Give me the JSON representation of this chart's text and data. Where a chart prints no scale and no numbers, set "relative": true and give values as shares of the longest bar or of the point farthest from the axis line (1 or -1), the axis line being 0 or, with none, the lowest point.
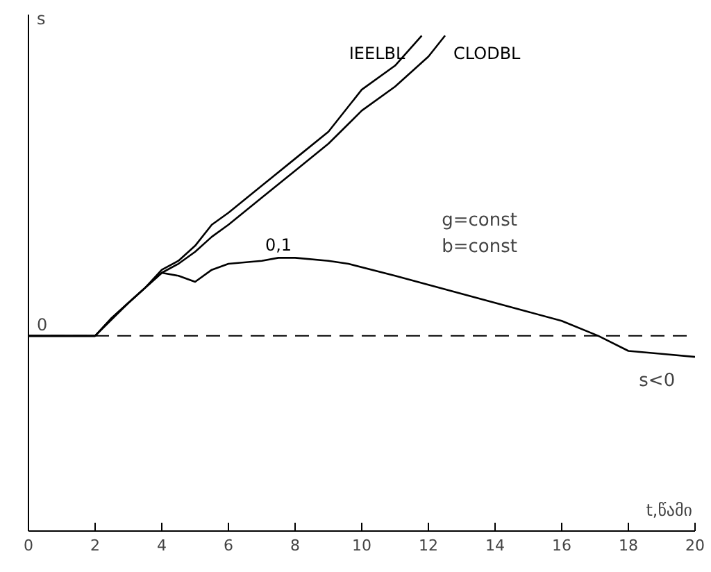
{
  "chart_data": {
    "type": "line",
    "relative": true,
    "ylabel": "s",
    "xlabel": "t,წამი",
    "xlim": [
      0,
      20
    ],
    "xticks": [
      0,
      2,
      4,
      6,
      8,
      10,
      12,
      14,
      16,
      18,
      20
    ],
    "grid": false,
    "marker": "none",
    "line_style": "solid",
    "series": [
      {
        "name": "IEELBL",
        "color": "#000000",
        "x": [
          0,
          2,
          2.5,
          3,
          3.5,
          4,
          4.5,
          5,
          5.5,
          6,
          7,
          8,
          9,
          10,
          11,
          11.8
        ],
        "values": [
          0,
          0,
          0.06,
          0.11,
          0.16,
          0.22,
          0.25,
          0.3,
          0.37,
          0.41,
          0.5,
          0.59,
          0.68,
          0.82,
          0.9,
          1.0
        ]
      },
      {
        "name": "CLODBL",
        "color": "#000000",
        "x": [
          0,
          2,
          2.5,
          3,
          3.5,
          4,
          4.5,
          5,
          5.5,
          6,
          7,
          8,
          9,
          10,
          11,
          12,
          12.5
        ],
        "values": [
          0,
          0,
          0.06,
          0.11,
          0.16,
          0.21,
          0.24,
          0.28,
          0.33,
          0.37,
          0.46,
          0.55,
          0.64,
          0.75,
          0.83,
          0.93,
          1.0
        ]
      },
      {
        "name": "0,1",
        "color": "#000000",
        "x": [
          0,
          2,
          3,
          4,
          4.5,
          5,
          5.5,
          6,
          7,
          7.5,
          8,
          9,
          9.6,
          11,
          12,
          13,
          14,
          15,
          16,
          17.1,
          18,
          19,
          20
        ],
        "values": [
          0,
          0,
          0.11,
          0.21,
          0.2,
          0.18,
          0.22,
          0.24,
          0.25,
          0.26,
          0.26,
          0.25,
          0.24,
          0.2,
          0.17,
          0.14,
          0.11,
          0.08,
          0.05,
          0,
          -0.05,
          -0.06,
          -0.07
        ]
      }
    ],
    "ref_lines": [
      {
        "axis": "y",
        "value": 0,
        "label": "0",
        "line_style": "dashed",
        "color": "#000000"
      }
    ],
    "annotations": [
      "g=const",
      "b=const",
      "s<0"
    ]
  }
}
